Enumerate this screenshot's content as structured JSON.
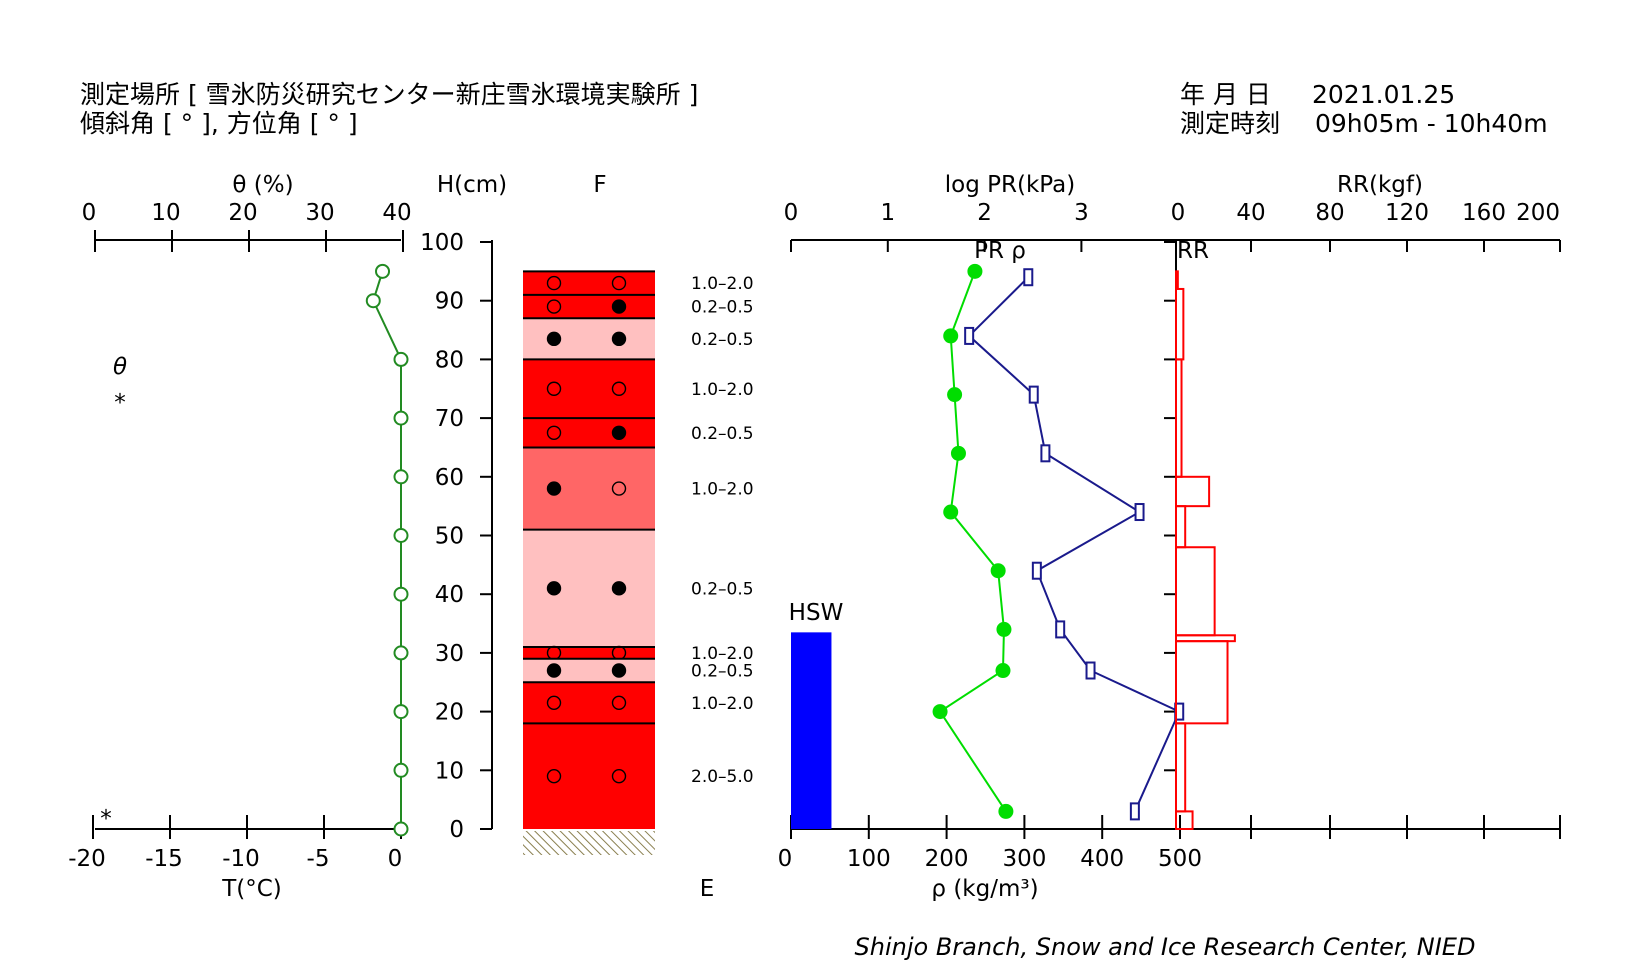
{
  "header": {
    "site_line": "測定場所 [ 雪氷防災研究センター新庄雪氷環境実験所 ]",
    "angle_line": "傾斜角 [ ° ], 方位角 [ ° ]",
    "date_label": "年 月 日",
    "date_value": "2021.01.25",
    "time_label": "測定時刻",
    "time_value": "09h05m - 10h40m"
  },
  "labels": {
    "theta_axis": "θ (%)",
    "temp_axis": "T(°C)",
    "height_axis": "H(cm)",
    "f_col": "F",
    "e_col": "E",
    "logpr_axis": "log PR(kPa)",
    "rr_axis": "RR(kgf)",
    "density_axis": "ρ (kg/m³)",
    "pr_rho_legend": "PR ρ",
    "rr_legend": "RR",
    "hsw_label": "HSW",
    "theta_legend": "θ",
    "star_legend": "*",
    "star_bottom": "*",
    "credit": "Shinjo Branch, Snow and Ice Research Center, NIED"
  },
  "colors": {
    "temperature": "#228B22",
    "pr": "#00DD00",
    "density": "#1A1A8C",
    "rr": "#FF0000",
    "hsw": "#0000FF",
    "layer_red": "#FF0000",
    "layer_mid": "#FF6666",
    "layer_pink": "#FFC0C0",
    "ground": "#B8B088"
  },
  "chart_data": {
    "type": "snow-pit-profile",
    "height_ticks": [
      "0",
      "10",
      "20",
      "30",
      "40",
      "50",
      "60",
      "70",
      "80",
      "90",
      "100"
    ],
    "theta_ticks": [
      "0",
      "10",
      "20",
      "30",
      "40"
    ],
    "temp_ticks": [
      "-20",
      "-15",
      "-10",
      "-5",
      "0"
    ],
    "logpr_ticks": [
      "0",
      "1",
      "2",
      "3"
    ],
    "rr_ticks": [
      "0",
      "40",
      "80",
      "120",
      "160",
      "200"
    ],
    "density_ticks": [
      "0",
      "100",
      "200",
      "300",
      "400",
      "500"
    ],
    "temperature": [
      {
        "h": 95,
        "t": -1.2
      },
      {
        "h": 90,
        "t": -1.8
      },
      {
        "h": 80,
        "t": 0
      },
      {
        "h": 70,
        "t": 0
      },
      {
        "h": 60,
        "t": 0
      },
      {
        "h": 50,
        "t": 0
      },
      {
        "h": 40,
        "t": 0
      },
      {
        "h": 30,
        "t": 0
      },
      {
        "h": 20,
        "t": 0
      },
      {
        "h": 10,
        "t": 0
      },
      {
        "h": 0,
        "t": 0
      }
    ],
    "pr_logkpa": [
      {
        "h": 95,
        "v": 1.9
      },
      {
        "h": 84,
        "v": 1.65
      },
      {
        "h": 74,
        "v": 1.69
      },
      {
        "h": 64,
        "v": 1.73
      },
      {
        "h": 54,
        "v": 1.65
      },
      {
        "h": 44,
        "v": 2.14
      },
      {
        "h": 34,
        "v": 2.2
      },
      {
        "h": 27,
        "v": 2.19
      },
      {
        "h": 20,
        "v": 1.54
      },
      {
        "h": 3,
        "v": 2.22
      }
    ],
    "density": [
      {
        "h": 94,
        "v": 305
      },
      {
        "h": 84,
        "v": 229
      },
      {
        "h": 74,
        "v": 312
      },
      {
        "h": 64,
        "v": 327
      },
      {
        "h": 54,
        "v": 448
      },
      {
        "h": 44,
        "v": 316
      },
      {
        "h": 34,
        "v": 346
      },
      {
        "h": 27,
        "v": 385
      },
      {
        "h": 20,
        "v": 499
      },
      {
        "h": 3,
        "v": 442
      }
    ],
    "rr_steps": [
      {
        "top": 95,
        "bottom": 92,
        "v": 1
      },
      {
        "top": 92,
        "bottom": 80,
        "v": 4
      },
      {
        "top": 80,
        "bottom": 60,
        "v": 3
      },
      {
        "top": 60,
        "bottom": 55,
        "v": 18
      },
      {
        "top": 55,
        "bottom": 48,
        "v": 5
      },
      {
        "top": 48,
        "bottom": 33,
        "v": 21
      },
      {
        "top": 33,
        "bottom": 32,
        "v": 32
      },
      {
        "top": 32,
        "bottom": 18,
        "v": 28
      },
      {
        "top": 18,
        "bottom": 3,
        "v": 5
      },
      {
        "top": 3,
        "bottom": 0,
        "v": 9
      }
    ],
    "hsw": {
      "value_kg_m3": 52,
      "height_cm": 33.5
    },
    "layers": [
      {
        "top": 95,
        "bottom": 91,
        "fill": "red",
        "left": "open",
        "right": "open",
        "size": "1.0-2.0"
      },
      {
        "top": 91,
        "bottom": 87,
        "fill": "red",
        "left": "open",
        "right": "solid",
        "size": "0.2-0.5"
      },
      {
        "top": 87,
        "bottom": 80,
        "fill": "pink",
        "left": "solid",
        "right": "solid",
        "size": "0.2-0.5"
      },
      {
        "top": 80,
        "bottom": 70,
        "fill": "red",
        "left": "open",
        "right": "open",
        "size": "1.0-2.0"
      },
      {
        "top": 70,
        "bottom": 65,
        "fill": "red",
        "left": "open",
        "right": "solid",
        "size": "0.2-0.5"
      },
      {
        "top": 65,
        "bottom": 51,
        "fill": "mid",
        "left": "solid",
        "right": "open",
        "size": "1.0-2.0"
      },
      {
        "top": 51,
        "bottom": 31,
        "fill": "pink",
        "left": "solid",
        "right": "solid",
        "size": "0.2-0.5"
      },
      {
        "top": 31,
        "bottom": 29,
        "fill": "red",
        "left": "open",
        "right": "open",
        "size": "1.0-2.0"
      },
      {
        "top": 29,
        "bottom": 25,
        "fill": "pink",
        "left": "solid",
        "right": "solid",
        "size": "0.2-0.5"
      },
      {
        "top": 25,
        "bottom": 18,
        "fill": "red",
        "left": "open",
        "right": "open",
        "size": "1.0-2.0"
      },
      {
        "top": 18,
        "bottom": 0,
        "fill": "red",
        "left": "open",
        "right": "open",
        "size": "2.0-5.0"
      }
    ]
  }
}
